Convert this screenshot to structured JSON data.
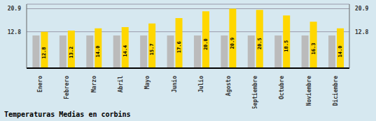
{
  "chart_data": {
    "type": "bar",
    "title": "Temperaturas Medias en corbins",
    "categories": [
      "Enero",
      "Febrero",
      "Marzo",
      "Abril",
      "Mayo",
      "Junio",
      "Julio",
      "Agosto",
      "Septiembre",
      "Octubre",
      "Noviembre",
      "Diciembre"
    ],
    "series": [
      {
        "color": "#BBBBBB",
        "values": [
          11.5,
          11.5,
          11.5,
          11.5,
          11.5,
          11.5,
          11.5,
          11.5,
          11.5,
          11.5,
          11.5,
          11.5
        ]
      },
      {
        "color": "#FFD700",
        "values": [
          12.8,
          13.2,
          14.0,
          14.4,
          15.7,
          17.6,
          20.0,
          20.9,
          20.5,
          18.5,
          16.3,
          14.0
        ],
        "value_labels": [
          "12.8",
          "13.2",
          "14.0",
          "14.4",
          "15.7",
          "17.6",
          "20.0",
          "20.9",
          "20.5",
          "18.5",
          "16.3",
          "14.0"
        ],
        "data_labels": true
      }
    ],
    "ylim": [
      0,
      22.5
    ],
    "yticks": [
      12.8,
      20.9
    ],
    "y2lim": [
      0,
      22.5
    ],
    "y2ticks": [
      12.8,
      20.9
    ],
    "grid": true
  }
}
